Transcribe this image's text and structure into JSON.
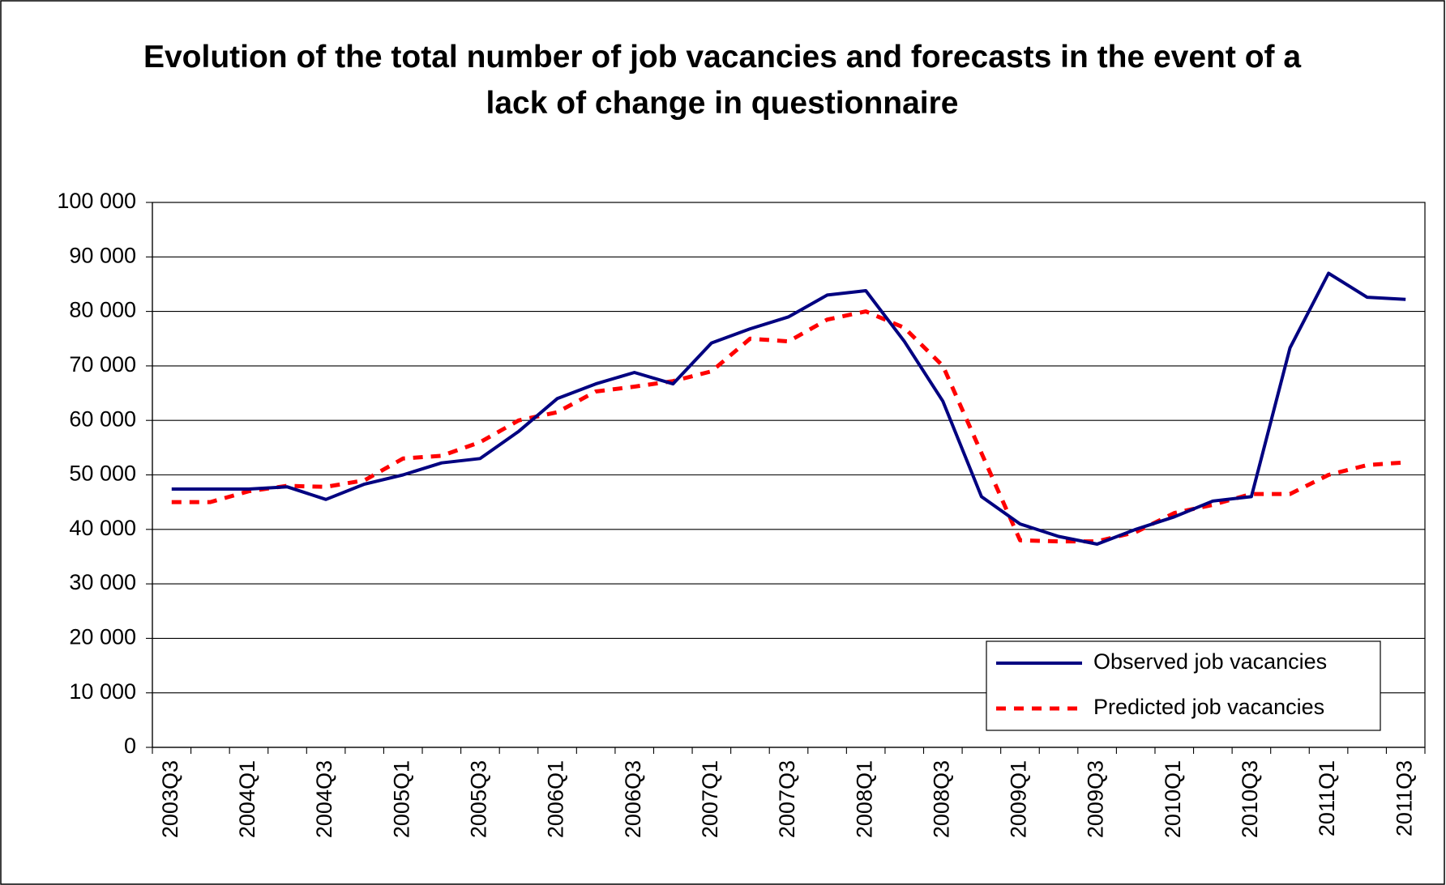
{
  "chart_data": {
    "type": "line",
    "title": "Evolution of the total number of job vacancies and forecasts in the event of a lack of change in questionnaire",
    "categories": [
      "2003Q3",
      null,
      "2004Q1",
      null,
      "2004Q3",
      null,
      "2005Q1",
      null,
      "2005Q3",
      null,
      "2006Q1",
      null,
      "2006Q3",
      null,
      "2007Q1",
      null,
      "2007Q3",
      null,
      "2008Q1",
      null,
      "2008Q3",
      null,
      "2009Q1",
      null,
      "2009Q3",
      null,
      "2010Q1",
      null,
      "2010Q3",
      null,
      "2011Q1",
      null,
      "2011Q3"
    ],
    "series": [
      {
        "name": "Observed job vacancies",
        "color": "#000080",
        "dash": false,
        "values": [
          47400,
          47400,
          47400,
          47800,
          45500,
          48300,
          50000,
          52200,
          53000,
          58000,
          64000,
          66700,
          68800,
          66700,
          74200,
          76800,
          79000,
          83000,
          83800,
          74500,
          63500,
          46000,
          41000,
          38700,
          37300,
          40000,
          42300,
          45200,
          46000,
          73300,
          87000,
          82600,
          82200
        ]
      },
      {
        "name": "Predicted job vacancies",
        "color": "#ff0000",
        "dash": true,
        "values": [
          45000,
          45000,
          47000,
          48000,
          47800,
          49000,
          53000,
          53500,
          56000,
          60000,
          61500,
          65300,
          66200,
          67200,
          69000,
          75000,
          74500,
          78500,
          80000,
          77000,
          70000,
          54000,
          38000,
          37800,
          37800,
          39500,
          43000,
          44500,
          46500,
          46500,
          50000,
          51800,
          52300
        ]
      }
    ],
    "ylim": [
      0,
      100000
    ],
    "yticks": [
      0,
      {
        "value": 10000,
        "label": "10 000"
      },
      {
        "value": 20000,
        "label": "20 000"
      },
      {
        "value": 30000,
        "label": "30 000"
      },
      {
        "value": 40000,
        "label": "40 000"
      },
      {
        "value": 50000,
        "label": "50 000"
      },
      {
        "value": 60000,
        "label": "60 000"
      },
      {
        "value": 70000,
        "label": "70 000"
      },
      {
        "value": 80000,
        "label": "80 000"
      },
      {
        "value": 90000,
        "label": "90 000"
      },
      {
        "value": 100000,
        "label": "100 000"
      }
    ],
    "grid": true,
    "legend": "lower right"
  }
}
